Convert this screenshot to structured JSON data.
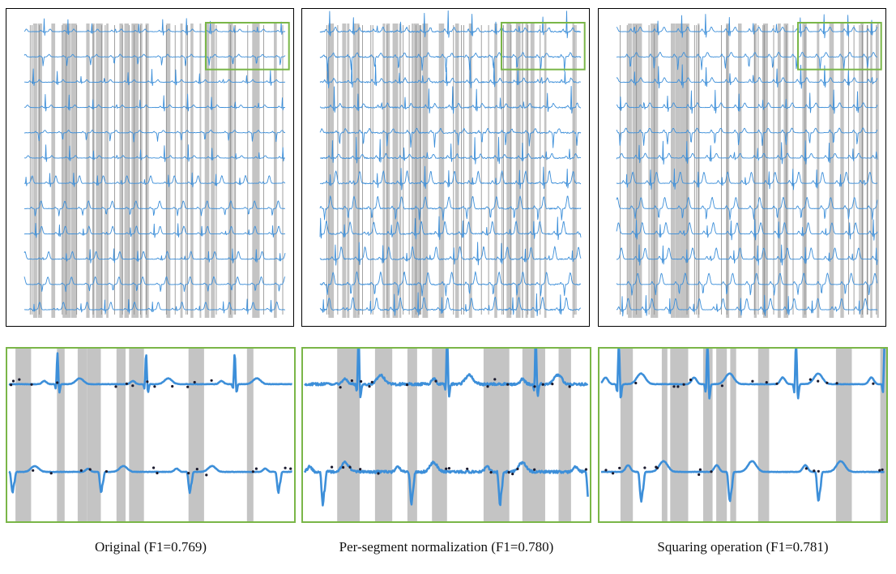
{
  "figure": {
    "captions": [
      "Original (F1=0.769)",
      "Per-segment normalization (F1=0.780)",
      "Squaring operation (F1=0.781)"
    ],
    "colors": {
      "signal": "#3d8fd9",
      "signal_dark": "#1a1a2e",
      "shade": "#c4c4c4",
      "grid_line": "#8a8a8a",
      "highlight_box": "#7ab648",
      "panel_border": "#000000"
    },
    "panels": [
      {
        "name": "original",
        "lead_count": 12,
        "mode": "original",
        "highlight_box": "top-right",
        "seed": 3
      },
      {
        "name": "per-segment-normalization",
        "lead_count": 12,
        "mode": "normalized",
        "highlight_box": "top-right",
        "seed": 11
      },
      {
        "name": "squaring-operation",
        "lead_count": 12,
        "mode": "squared",
        "highlight_box": "top-right",
        "seed": 23
      }
    ]
  }
}
